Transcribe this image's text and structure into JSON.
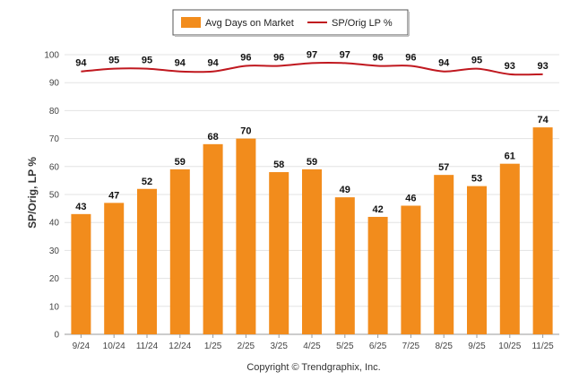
{
  "chart_data": {
    "type": "bar",
    "categories": [
      "9/24",
      "10/24",
      "11/24",
      "12/24",
      "1/25",
      "2/25",
      "3/25",
      "4/25",
      "5/25",
      "6/25",
      "7/25",
      "8/25",
      "9/25",
      "10/25",
      "11/25"
    ],
    "series": [
      {
        "name": "Avg Days on Market",
        "type": "bar",
        "color": "#F28C1C",
        "values": [
          43,
          47,
          52,
          59,
          68,
          70,
          58,
          59,
          49,
          42,
          46,
          57,
          53,
          61,
          74
        ]
      },
      {
        "name": "SP/Orig LP %",
        "type": "line",
        "color": "#C0181F",
        "values": [
          94,
          95,
          95,
          94,
          94,
          96,
          96,
          97,
          97,
          96,
          96,
          94,
          95,
          93,
          93
        ]
      }
    ],
    "ylabel": "SP/Orig, LP %",
    "xlabel": "",
    "ylim": [
      0,
      100
    ],
    "yticks": [
      0,
      10,
      20,
      30,
      40,
      50,
      60,
      70,
      80,
      90,
      100
    ],
    "grid": true,
    "legend_position": "top-center"
  },
  "footer": {
    "copyright": "Copyright © Trendgraphix, Inc."
  }
}
